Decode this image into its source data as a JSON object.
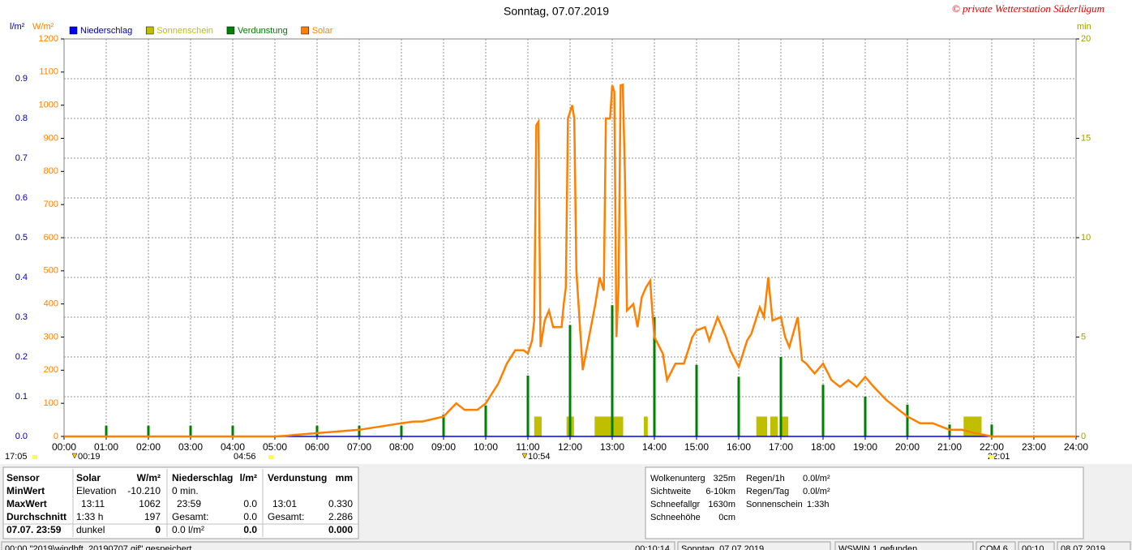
{
  "chart_data": {
    "type": "line",
    "title": "Sonntag, 07.07.2019",
    "copyright": "© private Wetterstation Süderlügum",
    "ylabel": "W/m²",
    "y2label": "l/m²",
    "y3label": "min",
    "grid": true,
    "xlim": [
      0,
      24
    ],
    "xticks": [
      {
        "value": 0,
        "label": "00:00"
      },
      {
        "value": 1,
        "label": "01:00"
      },
      {
        "value": 2,
        "label": "02:00"
      },
      {
        "value": 3,
        "label": "03:00"
      },
      {
        "value": 4,
        "label": "04:00"
      },
      {
        "value": 5,
        "label": "05:00"
      },
      {
        "value": 6,
        "label": "06:00"
      },
      {
        "value": 7,
        "label": "07:00"
      },
      {
        "value": 8,
        "label": "08:00"
      },
      {
        "value": 9,
        "label": "09:00"
      },
      {
        "value": 10,
        "label": "10:00"
      },
      {
        "value": 11,
        "label": "11:00"
      },
      {
        "value": 12,
        "label": "12:00"
      },
      {
        "value": 13,
        "label": "13:00"
      },
      {
        "value": 14,
        "label": "14:00"
      },
      {
        "value": 15,
        "label": "15:00"
      },
      {
        "value": 16,
        "label": "16:00"
      },
      {
        "value": 17,
        "label": "17:00"
      },
      {
        "value": 18,
        "label": "18:00"
      },
      {
        "value": 19,
        "label": "19:00"
      },
      {
        "value": 20,
        "label": "20:00"
      },
      {
        "value": 21,
        "label": "21:00"
      },
      {
        "value": 22,
        "label": "22:00"
      },
      {
        "value": 23,
        "label": "23:00"
      },
      {
        "value": 24,
        "label": "24:00"
      }
    ],
    "ylim": [
      0,
      1200
    ],
    "yticks": [
      0,
      100,
      200,
      300,
      400,
      500,
      600,
      700,
      800,
      900,
      1000,
      1100,
      1200
    ],
    "y2lim": [
      0,
      1.0
    ],
    "y2ticks": [
      {
        "value": 0,
        "label": "0.0"
      },
      0.1,
      0.2,
      0.3,
      0.4,
      0.5,
      0.6,
      0.7,
      0.8,
      0.9
    ],
    "y3lim": [
      0,
      20
    ],
    "y3ticks": [
      0,
      5,
      10,
      15,
      20
    ],
    "series": [
      {
        "name": "Niederschlag",
        "color": "#0000ff",
        "axis": "y2",
        "kind": "line",
        "x": [
          0,
          24
        ],
        "values": [
          0,
          0
        ]
      },
      {
        "name": "Sonnenschein",
        "color": "#bfbf00",
        "axis": "y3",
        "kind": "bins",
        "x": [
          11.15,
          11.233,
          11.917,
          12.0,
          12.583,
          12.667,
          12.75,
          12.833,
          12.917,
          13.0,
          13.083,
          13.167,
          13.75,
          16.417,
          16.5,
          16.583,
          16.75,
          16.833,
          17.0,
          17.083,
          21.333,
          21.417,
          21.5,
          21.583,
          21.667
        ],
        "values": [
          1,
          1,
          1,
          1,
          1,
          1,
          1,
          1,
          1,
          1,
          1,
          1,
          1,
          1,
          1,
          1,
          1,
          1,
          1,
          1,
          1,
          1,
          1,
          1,
          1
        ]
      },
      {
        "name": "Verdunstung",
        "color": "#008000",
        "axis": "y2",
        "kind": "spikes",
        "x": [
          1,
          2,
          3,
          4,
          6,
          7,
          8,
          9,
          10,
          11,
          12,
          13,
          14,
          15,
          16,
          17,
          18,
          19,
          20,
          21,
          22
        ],
        "values": [
          0.027,
          0.027,
          0.027,
          0.027,
          0.027,
          0.027,
          0.027,
          0.055,
          0.078,
          0.153,
          0.28,
          0.33,
          0.3,
          0.18,
          0.15,
          0.2,
          0.13,
          0.1,
          0.08,
          0.03,
          0.03
        ]
      },
      {
        "name": "Solar",
        "color": "#ff8000",
        "kind": "line",
        "x": [
          0,
          5,
          5.25,
          5.5,
          6,
          6.5,
          7,
          7.5,
          8,
          8.3,
          8.5,
          9,
          9.3,
          9.5,
          9.8,
          10,
          10.3,
          10.5,
          10.7,
          10.9,
          11,
          11.1,
          11.15,
          11.2,
          11.25,
          11.3,
          11.4,
          11.5,
          11.6,
          11.8,
          11.85,
          11.9,
          11.95,
          12.05,
          12.1,
          12.15,
          12.3,
          12.45,
          12.6,
          12.7,
          12.8,
          12.85,
          12.95,
          13,
          13.05,
          13.1,
          13.15,
          13.2,
          13.25,
          13.3,
          13.35,
          13.5,
          13.6,
          13.7,
          13.8,
          13.9,
          13.95,
          14,
          14.2,
          14.3,
          14.5,
          14.7,
          14.9,
          15,
          15.2,
          15.3,
          15.5,
          15.7,
          15.8,
          16,
          16.2,
          16.3,
          16.4,
          16.5,
          16.6,
          16.7,
          16.8,
          17,
          17.1,
          17.2,
          17.4,
          17.5,
          17.6,
          17.8,
          18,
          18.2,
          18.4,
          18.6,
          18.8,
          19,
          19.2,
          19.5,
          19.7,
          20,
          20.3,
          20.6,
          20.8,
          21,
          21.3,
          21.6,
          22,
          24
        ],
        "values": [
          0,
          0,
          2,
          5,
          10,
          15,
          20,
          30,
          40,
          45,
          45,
          60,
          100,
          80,
          80,
          100,
          160,
          220,
          260,
          260,
          250,
          290,
          350,
          940,
          950,
          270,
          350,
          380,
          330,
          330,
          400,
          450,
          960,
          1000,
          960,
          500,
          200,
          300,
          400,
          480,
          440,
          960,
          960,
          1060,
          1040,
          300,
          450,
          1060,
          1062,
          800,
          380,
          400,
          330,
          420,
          450,
          470,
          380,
          300,
          250,
          170,
          220,
          220,
          300,
          320,
          330,
          290,
          360,
          300,
          260,
          210,
          290,
          310,
          350,
          390,
          360,
          480,
          350,
          360,
          300,
          270,
          360,
          230,
          220,
          190,
          220,
          170,
          150,
          170,
          150,
          180,
          150,
          110,
          90,
          60,
          40,
          40,
          30,
          20,
          20,
          10,
          0,
          0
        ]
      }
    ],
    "annotations": [
      "17:05",
      "00:19",
      "04:56",
      "10:54",
      "22:01"
    ]
  },
  "panel": {
    "rows": [
      {
        "head": "Sensor",
        "solar": {
          "left": "Solar",
          "right": "W/m²"
        },
        "niederschlag": {
          "left": "Niederschlag",
          "right": "l/m²"
        },
        "verdunstung": {
          "left": "Verdunstung",
          "right": "mm"
        }
      },
      {
        "head": "MinWert",
        "solar": {
          "left": "Elevation",
          "right": "-10.210"
        },
        "niederschlag": {
          "left": "0 min."
        },
        "verdunstung": {}
      },
      {
        "head": "MaxWert",
        "solar": {
          "left": "13:11",
          "right": "1062"
        },
        "niederschlag": {
          "left": "23:59",
          "right": "0.0"
        },
        "verdunstung": {
          "left": "13:01",
          "right": "0.330"
        }
      },
      {
        "head": "Durchschnitt",
        "solar": {
          "left": "1:33 h",
          "right": "197"
        },
        "niederschlag": {
          "left": "Gesamt:",
          "right": "0.0"
        },
        "verdunstung": {
          "left": "Gesamt:",
          "right": "2.286"
        }
      },
      {
        "head": "07.07. 23:59",
        "solar": {
          "left": "dunkel",
          "right": "0"
        },
        "niederschlag": {
          "left": "0.0 l/m²",
          "right": "0.0"
        },
        "verdunstung": {
          "right": "0.000"
        }
      }
    ],
    "info_a": [
      [
        "Wolkenunterg",
        "325m"
      ],
      [
        "Sichtweite",
        "6-10km"
      ],
      [
        "Schneefallgr",
        "1630m"
      ],
      [
        "Schneehöhe",
        "0cm"
      ]
    ],
    "info_b": [
      [
        "Regen/1h",
        "0.0l/m²"
      ],
      [
        "Regen/Tag",
        "0.0l/m²"
      ],
      [
        "Sonnenschein",
        "1:33h"
      ]
    ]
  },
  "status": [
    "00:00  \"2019\\windbft_20190707.gif\" gespeichert",
    "00:10:14",
    "Sonntag, 07.07.2019",
    "WSWIN 1 gefunden",
    "COM 6",
    "00:10",
    "08.07.2019"
  ]
}
